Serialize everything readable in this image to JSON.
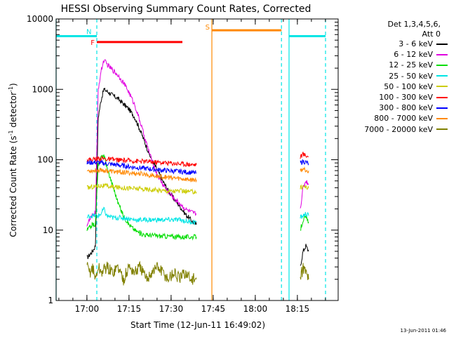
{
  "chart_data": {
    "type": "line",
    "title": "HESSI Observing Summary Count Rates, Corrected",
    "xlabel": "Start Time (12-Jun-11 16:49:02)",
    "ylabel_prefix": "Corrected Count Rate (s",
    "ylabel_exp1": "-1",
    "ylabel_mid": " detector",
    "ylabel_exp2": "-1",
    "ylabel_suffix": ")",
    "x_unit": "minutes since 16:49:02",
    "xlim": [
      0,
      100.5
    ],
    "ylim": [
      1,
      10000
    ],
    "y_scale": "log",
    "x_ticks": [
      {
        "value": 10.97,
        "label": "17:00"
      },
      {
        "value": 25.97,
        "label": "17:15"
      },
      {
        "value": 40.97,
        "label": "17:30"
      },
      {
        "value": 55.97,
        "label": "17:45"
      },
      {
        "value": 70.97,
        "label": "18:00"
      },
      {
        "value": 85.97,
        "label": "18:15"
      }
    ],
    "y_ticks": [
      {
        "value": 1,
        "label": "1"
      },
      {
        "value": 10,
        "label": "10"
      },
      {
        "value": 100,
        "label": "100"
      },
      {
        "value": 1000,
        "label": "1000"
      },
      {
        "value": 10000,
        "label": "10000"
      }
    ],
    "legend": {
      "title_line1": "Det 1,3,4,5,6,",
      "title_line2": "Att 0",
      "placement": "top-right"
    },
    "series": [
      {
        "name": "3 - 6 keV",
        "color": "#000000",
        "segments": [
          [
            [
              11,
              4
            ],
            [
              12,
              4.5
            ],
            [
              13,
              5
            ],
            [
              14,
              6
            ],
            [
              15,
              400
            ],
            [
              16,
              700
            ],
            [
              17,
              1000
            ],
            [
              18,
              950
            ],
            [
              20,
              830
            ],
            [
              22,
              740
            ],
            [
              24,
              620
            ],
            [
              26,
              520
            ],
            [
              28,
              400
            ],
            [
              30,
              260
            ],
            [
              32,
              160
            ],
            [
              34,
              100
            ],
            [
              36,
              72
            ],
            [
              38,
              50
            ],
            [
              40,
              36
            ],
            [
              42,
              28
            ],
            [
              44,
              22
            ],
            [
              46,
              17
            ],
            [
              48,
              14
            ],
            [
              50,
              12
            ]
          ],
          [
            [
              87,
              3
            ],
            [
              88,
              5
            ],
            [
              89,
              6
            ],
            [
              90,
              5
            ]
          ]
        ]
      },
      {
        "name": "6 - 12 keV",
        "color": "#e000e0",
        "segments": [
          [
            [
              11,
              12
            ],
            [
              12,
              14
            ],
            [
              13,
              16
            ],
            [
              14,
              18
            ],
            [
              15,
              1000
            ],
            [
              16,
              1800
            ],
            [
              17,
              2600
            ],
            [
              18,
              2300
            ],
            [
              20,
              1900
            ],
            [
              22,
              1600
            ],
            [
              24,
              1250
            ],
            [
              26,
              900
            ],
            [
              28,
              600
            ],
            [
              30,
              340
            ],
            [
              32,
              180
            ],
            [
              34,
              100
            ],
            [
              36,
              62
            ],
            [
              38,
              45
            ],
            [
              40,
              35
            ],
            [
              42,
              28
            ],
            [
              44,
              24
            ],
            [
              46,
              20
            ],
            [
              48,
              18
            ],
            [
              50,
              17
            ]
          ],
          [
            [
              87,
              20
            ],
            [
              88,
              40
            ],
            [
              89,
              50
            ],
            [
              90,
              45
            ]
          ]
        ]
      },
      {
        "name": "12 - 25 keV",
        "color": "#00dd00",
        "segments": [
          [
            [
              11,
              10
            ],
            [
              12,
              11
            ],
            [
              13,
              12
            ],
            [
              14,
              12
            ],
            [
              15,
              85
            ],
            [
              16,
              105
            ],
            [
              17,
              120
            ],
            [
              18,
              80
            ],
            [
              20,
              45
            ],
            [
              22,
              25
            ],
            [
              24,
              16
            ],
            [
              26,
              12
            ],
            [
              28,
              10
            ],
            [
              30,
              9
            ],
            [
              32,
              8.5
            ],
            [
              34,
              8.5
            ],
            [
              36,
              8.3
            ],
            [
              38,
              8.2
            ],
            [
              40,
              8.2
            ],
            [
              42,
              8.1
            ],
            [
              44,
              8
            ],
            [
              46,
              8
            ],
            [
              48,
              8
            ],
            [
              50,
              8
            ]
          ],
          [
            [
              87,
              10
            ],
            [
              88,
              14
            ],
            [
              89,
              15
            ],
            [
              90,
              13
            ]
          ]
        ]
      },
      {
        "name": "25 - 50 keV",
        "color": "#00e5e5",
        "segments": [
          [
            [
              11,
              15
            ],
            [
              12,
              16
            ],
            [
              14,
              16
            ],
            [
              15,
              16
            ],
            [
              16,
              17
            ],
            [
              17,
              20
            ],
            [
              18,
              16
            ],
            [
              20,
              15
            ],
            [
              24,
              15
            ],
            [
              28,
              14
            ],
            [
              32,
              14
            ],
            [
              36,
              14
            ],
            [
              40,
              14
            ],
            [
              44,
              14
            ],
            [
              48,
              13
            ],
            [
              50,
              13
            ]
          ],
          [
            [
              87,
              15
            ],
            [
              88,
              16
            ],
            [
              89,
              17
            ],
            [
              90,
              16
            ]
          ]
        ]
      },
      {
        "name": "50 - 100 keV",
        "color": "#cccc00",
        "segments": [
          [
            [
              11,
              40
            ],
            [
              14,
              42
            ],
            [
              16,
              43
            ],
            [
              18,
              42
            ],
            [
              20,
              41
            ],
            [
              24,
              40
            ],
            [
              28,
              39
            ],
            [
              32,
              38
            ],
            [
              36,
              37
            ],
            [
              40,
              36
            ],
            [
              44,
              36
            ],
            [
              48,
              35
            ],
            [
              50,
              35
            ]
          ],
          [
            [
              87,
              40
            ],
            [
              88,
              42
            ],
            [
              89,
              41
            ],
            [
              90,
              40
            ]
          ]
        ]
      },
      {
        "name": "100 - 300 keV",
        "color": "#ff0000",
        "segments": [
          [
            [
              11,
              100
            ],
            [
              14,
              102
            ],
            [
              16,
              105
            ],
            [
              18,
              102
            ],
            [
              20,
              100
            ],
            [
              24,
              98
            ],
            [
              28,
              96
            ],
            [
              32,
              94
            ],
            [
              36,
              92
            ],
            [
              40,
              90
            ],
            [
              44,
              88
            ],
            [
              48,
              86
            ],
            [
              50,
              85
            ]
          ],
          [
            [
              87,
              110
            ],
            [
              88,
              120
            ],
            [
              89,
              115
            ],
            [
              90,
              110
            ]
          ]
        ]
      },
      {
        "name": "300 - 800 keV",
        "color": "#0000ff",
        "segments": [
          [
            [
              11,
              90
            ],
            [
              14,
              92
            ],
            [
              16,
              90
            ],
            [
              18,
              88
            ],
            [
              20,
              86
            ],
            [
              24,
              82
            ],
            [
              28,
              78
            ],
            [
              32,
              75
            ],
            [
              36,
              72
            ],
            [
              40,
              70
            ],
            [
              44,
              68
            ],
            [
              48,
              66
            ],
            [
              50,
              65
            ]
          ],
          [
            [
              87,
              90
            ],
            [
              88,
              95
            ],
            [
              89,
              92
            ],
            [
              90,
              88
            ]
          ]
        ]
      },
      {
        "name": "800 - 7000 keV",
        "color": "#ff8800",
        "segments": [
          [
            [
              11,
              70
            ],
            [
              14,
              70
            ],
            [
              16,
              72
            ],
            [
              18,
              70
            ],
            [
              20,
              68
            ],
            [
              24,
              66
            ],
            [
              28,
              64
            ],
            [
              32,
              62
            ],
            [
              36,
              58
            ],
            [
              40,
              56
            ],
            [
              44,
              54
            ],
            [
              48,
              52
            ],
            [
              50,
              52
            ]
          ],
          [
            [
              87,
              70
            ],
            [
              88,
              75
            ],
            [
              89,
              72
            ],
            [
              90,
              70
            ]
          ]
        ]
      },
      {
        "name": "7000 - 20000 keV",
        "color": "#808000",
        "segments": [
          [
            [
              11,
              3
            ],
            [
              12,
              2.5
            ],
            [
              13,
              3
            ],
            [
              14,
              2
            ],
            [
              15,
              3
            ],
            [
              16,
              2.5
            ],
            [
              18,
              3
            ],
            [
              20,
              2.5
            ],
            [
              22,
              3
            ],
            [
              24,
              2
            ],
            [
              26,
              3
            ],
            [
              28,
              2.5
            ],
            [
              30,
              3
            ],
            [
              32,
              2
            ],
            [
              34,
              2.5
            ],
            [
              36,
              3
            ],
            [
              38,
              2.5
            ],
            [
              40,
              2
            ],
            [
              42,
              2.5
            ],
            [
              44,
              2
            ],
            [
              46,
              2.5
            ],
            [
              48,
              2
            ],
            [
              50,
              2
            ]
          ],
          [
            [
              87,
              2
            ],
            [
              88,
              3
            ],
            [
              89,
              2.5
            ],
            [
              90,
              2
            ]
          ]
        ]
      }
    ],
    "annotations": {
      "horizontal_bars": [
        {
          "label": "",
          "color": "#00e5e5",
          "x": [
            0,
            9
          ],
          "y": 5700
        },
        {
          "label": "N",
          "color": "#00e5e5",
          "x": [
            9,
            14.5
          ],
          "y": 5700
        },
        {
          "label": "F",
          "color": "#ff0000",
          "x": [
            14.5,
            45
          ],
          "y": 4700
        },
        {
          "label": "S",
          "color": "#ff8800",
          "x": [
            55.5,
            80.3
          ],
          "y": 6900
        },
        {
          "label": "",
          "color": "#00e5e5",
          "x": [
            83,
            96
          ],
          "y": 5700
        }
      ],
      "vertical_lines": [
        {
          "x": 0,
          "color": "#00e5e5",
          "style": "solid"
        },
        {
          "x": 14.5,
          "color": "#00e5e5",
          "style": "dashed"
        },
        {
          "x": 55.5,
          "color": "#ff8800",
          "style": "solid"
        },
        {
          "x": 80.3,
          "color": "#00e5e5",
          "style": "dashed"
        },
        {
          "x": 83,
          "color": "#00e5e5",
          "style": "solid"
        },
        {
          "x": 96,
          "color": "#00e5e5",
          "style": "dashed"
        }
      ]
    },
    "timestamp": "13-Jun-2011 01:46"
  }
}
